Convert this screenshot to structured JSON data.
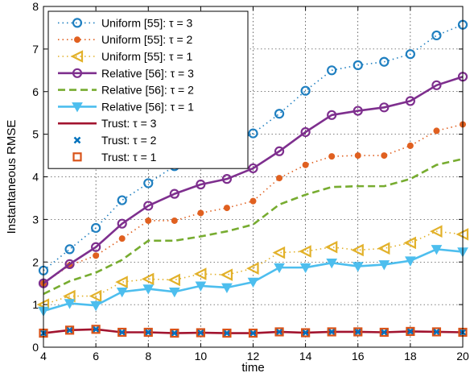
{
  "chart_data": {
    "type": "line",
    "xlabel": "time",
    "ylabel": "Instantaneous RMSE",
    "xlim": [
      4,
      20
    ],
    "ylim": [
      0,
      8
    ],
    "xticks": [
      "4",
      "6",
      "8",
      "10",
      "12",
      "14",
      "16",
      "18",
      "20"
    ],
    "yticks": [
      "0",
      "1",
      "2",
      "3",
      "4",
      "5",
      "6",
      "7",
      "8"
    ],
    "grid": true,
    "legend_position": "top-left",
    "x": [
      4,
      5,
      6,
      7,
      8,
      9,
      10,
      11,
      12,
      13,
      14,
      15,
      16,
      17,
      18,
      19,
      20
    ],
    "series": [
      {
        "name": "Uniform [55]: τ = 3",
        "color": "#1F7FC0",
        "line": "dotted",
        "marker": "circle-open",
        "values": [
          1.8,
          2.3,
          2.8,
          3.45,
          3.85,
          4.25,
          4.5,
          4.72,
          5.02,
          5.48,
          6.02,
          6.5,
          6.62,
          6.7,
          6.88,
          7.32,
          7.57
        ]
      },
      {
        "name": "Uniform [55]: τ = 2",
        "color": "#E06020",
        "line": "dotted",
        "marker": "dot",
        "values": [
          1.5,
          1.92,
          2.15,
          2.55,
          2.97,
          2.97,
          3.15,
          3.27,
          3.43,
          3.97,
          4.28,
          4.48,
          4.5,
          4.5,
          4.73,
          5.08,
          5.23
        ]
      },
      {
        "name": "Uniform [55]: τ = 1",
        "color": "#E2B12A",
        "line": "dotted",
        "marker": "triangle-left-open",
        "values": [
          1.0,
          1.2,
          1.2,
          1.53,
          1.6,
          1.58,
          1.72,
          1.7,
          1.85,
          2.22,
          2.25,
          2.35,
          2.28,
          2.32,
          2.45,
          2.72,
          2.65
        ]
      },
      {
        "name": "Relative [56]: τ = 3",
        "color": "#7E2F8E",
        "line": "solid",
        "marker": "circle-open",
        "values": [
          1.5,
          1.95,
          2.35,
          2.9,
          3.32,
          3.6,
          3.82,
          3.95,
          4.2,
          4.6,
          5.05,
          5.45,
          5.55,
          5.63,
          5.78,
          6.15,
          6.35
        ]
      },
      {
        "name": "Relative [56]: τ = 2",
        "color": "#77AC30",
        "line": "dashed",
        "marker": "none",
        "values": [
          1.25,
          1.55,
          1.75,
          2.05,
          2.5,
          2.5,
          2.6,
          2.72,
          2.88,
          3.35,
          3.58,
          3.76,
          3.78,
          3.78,
          3.95,
          4.28,
          4.42
        ]
      },
      {
        "name": "Relative [56]: τ = 1",
        "color": "#4DBEEE",
        "line": "solid",
        "marker": "triangle-down",
        "values": [
          0.85,
          1.03,
          0.98,
          1.3,
          1.37,
          1.3,
          1.44,
          1.4,
          1.53,
          1.87,
          1.87,
          1.98,
          1.9,
          1.94,
          2.03,
          2.3,
          2.24
        ]
      },
      {
        "name": "Trust: τ = 3",
        "color": "#A2142F",
        "line": "solid",
        "marker": "none",
        "values": [
          0.33,
          0.4,
          0.42,
          0.35,
          0.35,
          0.33,
          0.34,
          0.33,
          0.33,
          0.36,
          0.34,
          0.36,
          0.36,
          0.35,
          0.37,
          0.36,
          0.35
        ]
      },
      {
        "name": "Trust: τ = 2",
        "color": "#0072BD",
        "line": "none",
        "marker": "x",
        "values": [
          0.33,
          0.4,
          0.42,
          0.35,
          0.35,
          0.33,
          0.34,
          0.33,
          0.33,
          0.36,
          0.34,
          0.36,
          0.36,
          0.35,
          0.37,
          0.36,
          0.35
        ]
      },
      {
        "name": "Trust: τ = 1",
        "color": "#D95319",
        "line": "none",
        "marker": "square-open",
        "values": [
          0.33,
          0.4,
          0.42,
          0.35,
          0.35,
          0.33,
          0.34,
          0.33,
          0.33,
          0.36,
          0.34,
          0.36,
          0.36,
          0.35,
          0.37,
          0.36,
          0.35
        ]
      }
    ]
  }
}
